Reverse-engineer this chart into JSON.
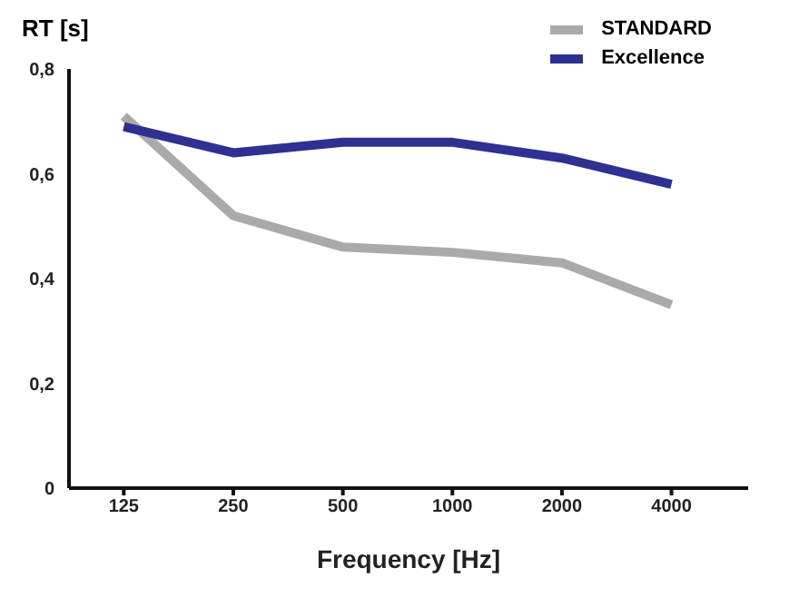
{
  "chart_data": {
    "type": "line",
    "xlabel": "Frequency [Hz]",
    "ylabel": "RT [s]",
    "categories": [
      "125",
      "250",
      "500",
      "1000",
      "2000",
      "4000"
    ],
    "series": [
      {
        "name": "STANDARD",
        "color": "#aaaaaa",
        "values": [
          0.71,
          0.52,
          0.46,
          0.45,
          0.43,
          0.35
        ]
      },
      {
        "name": "Excellence",
        "color": "#2e3192",
        "values": [
          0.69,
          0.64,
          0.66,
          0.66,
          0.63,
          0.58
        ]
      }
    ],
    "ylim": [
      0,
      0.8
    ],
    "yticks": [
      {
        "value": 0,
        "label": "0"
      },
      {
        "value": 0.2,
        "label": "0,2"
      },
      {
        "value": 0.4,
        "label": "0,4"
      },
      {
        "value": 0.6,
        "label": "0,6"
      },
      {
        "value": 0.8,
        "label": "0,8"
      }
    ],
    "grid": false,
    "legend": "top right",
    "marker": "none",
    "line_style": "solid"
  }
}
